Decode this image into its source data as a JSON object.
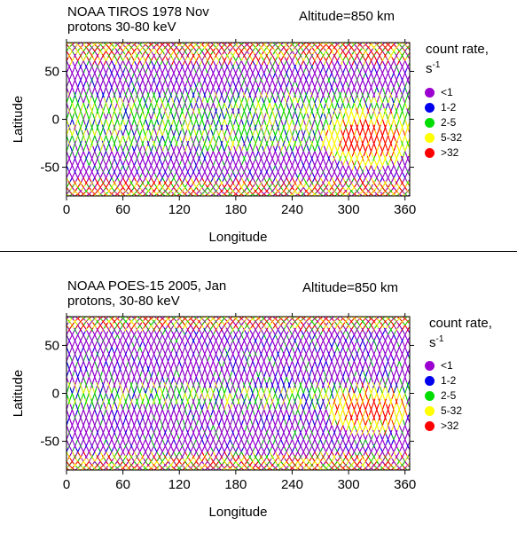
{
  "colors": {
    "lt1": "#9b00d0",
    "c1_2": "#0000ee",
    "c2_5": "#00dd00",
    "c5_32": "#ffff00",
    "gt32": "#ff0000"
  },
  "legend": {
    "title_line1": "count rate,",
    "title_line2": "s",
    "title_exp": "-1",
    "items": [
      {
        "label": "<1",
        "color": "#9b00d0"
      },
      {
        "label": "1-2",
        "color": "#0000ee"
      },
      {
        "label": "2-5",
        "color": "#00dd00"
      },
      {
        "label": "5-32",
        "color": "#ffff00"
      },
      {
        "label": ">32",
        "color": "#ff0000"
      }
    ]
  },
  "chart_data": [
    {
      "type": "scatter",
      "title": "NOAA  TIROS 1978 Nov",
      "subtitle": "protons 30-80 keV",
      "annotation": "Altitude=850 km",
      "xlabel": "Longitude",
      "ylabel": "Latitude",
      "xlim": [
        0,
        365
      ],
      "ylim": [
        -80,
        80
      ],
      "xticks": [
        "0",
        "60",
        "120",
        "180",
        "240",
        "300",
        "360"
      ],
      "xtick_values": [
        0,
        60,
        120,
        180,
        240,
        300,
        360
      ],
      "yticks": [
        "50",
        "0",
        "-50"
      ],
      "ytick_values": [
        50,
        0,
        -50
      ],
      "regions": {
        "equatorial_band": {
          "lat_range": [
            -30,
            25
          ],
          "level": "2-5"
        },
        "south_atlantic_anomaly": {
          "center": [
            322,
            -20
          ],
          "core_radius": [
            32,
            18
          ],
          "halo_radius": [
            50,
            30
          ]
        },
        "high_latitude_enhancement": {
          "lat_above": 60,
          "lat_below": -62
        }
      }
    },
    {
      "type": "scatter",
      "title": "NOAA POES-15  2005, Jan",
      "subtitle": "protons, 30-80 keV",
      "annotation": "Altitude=850 km",
      "xlabel": "Longitude",
      "ylabel": "Latitude",
      "xlim": [
        0,
        365
      ],
      "ylim": [
        -80,
        80
      ],
      "xticks": [
        "0",
        "60",
        "120",
        "180",
        "240",
        "300",
        "360"
      ],
      "xtick_values": [
        0,
        60,
        120,
        180,
        240,
        300,
        360
      ],
      "yticks": [
        "50",
        "0",
        "-50"
      ],
      "ytick_values": [
        50,
        0,
        -50
      ],
      "regions": {
        "equatorial_band": {
          "lat_range": [
            -15,
            10
          ],
          "level": "2-5"
        },
        "south_atlantic_anomaly": {
          "center": [
            322,
            -18
          ],
          "core_radius": [
            28,
            14
          ],
          "halo_radius": [
            42,
            24
          ]
        },
        "high_latitude_enhancement": {
          "lat_above": 65,
          "lat_below": -62
        }
      }
    }
  ]
}
